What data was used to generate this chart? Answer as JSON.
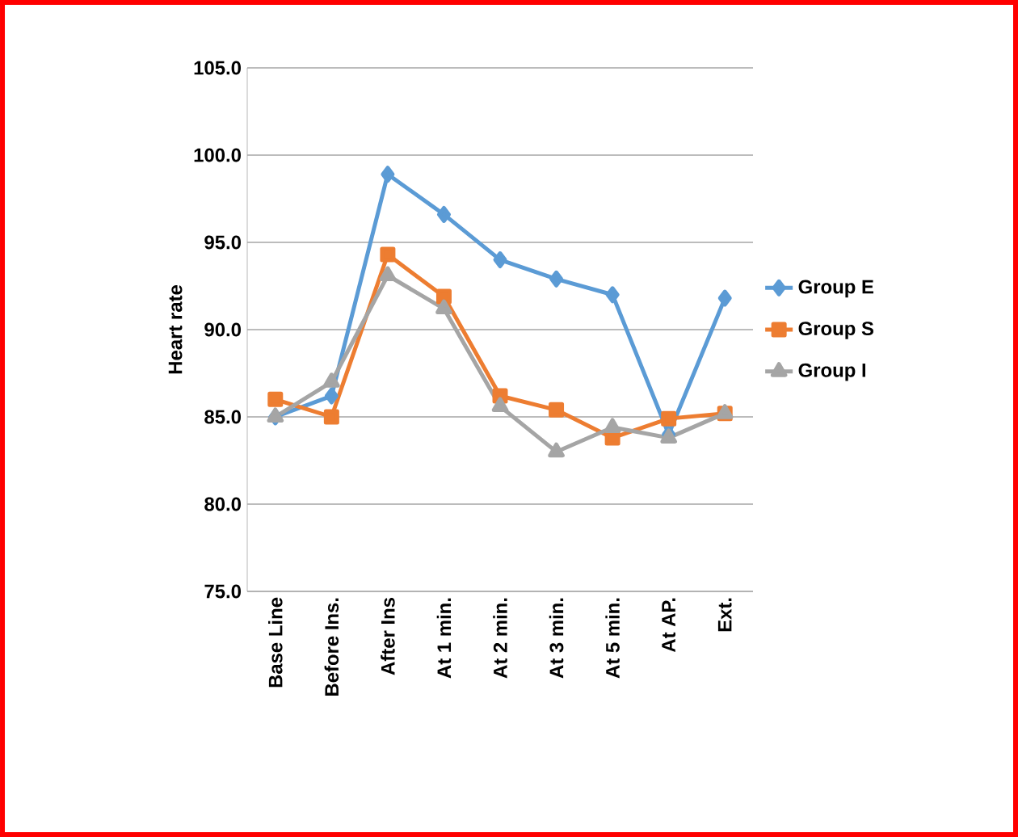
{
  "chart_data": {
    "type": "line",
    "ylabel": "Heart rate",
    "categories": [
      "Base Line",
      "Before Ins.",
      "After Ins",
      "At 1 min.",
      "At 2 min.",
      "At 3 min.",
      "At 5 min.",
      "At AP.",
      "Ext."
    ],
    "series": [
      {
        "name": "Group E",
        "color": "#5b9bd5",
        "marker": "diamond",
        "values": [
          85.0,
          86.2,
          98.9,
          96.6,
          94.0,
          92.9,
          92.0,
          84.0,
          91.8
        ]
      },
      {
        "name": "Group S",
        "color": "#ed7d31",
        "marker": "square",
        "values": [
          86.0,
          85.0,
          94.3,
          91.9,
          86.2,
          85.4,
          83.8,
          84.9,
          85.2
        ]
      },
      {
        "name": "Group I",
        "color": "#a5a5a5",
        "marker": "triangle",
        "values": [
          85.0,
          87.0,
          93.1,
          91.2,
          85.6,
          83.0,
          84.4,
          83.8,
          85.2
        ]
      }
    ],
    "ylim": [
      75,
      105
    ],
    "yticks": [
      {
        "value": 75,
        "label": "75.0"
      },
      {
        "value": 80,
        "label": "80.0"
      },
      {
        "value": 85,
        "label": "85.0"
      },
      {
        "value": 90,
        "label": "90.0"
      },
      {
        "value": 95,
        "label": "95.0"
      },
      {
        "value": 100,
        "label": "100.0"
      },
      {
        "value": 105,
        "label": "105.0"
      }
    ],
    "grid": "y",
    "legend": "right"
  }
}
